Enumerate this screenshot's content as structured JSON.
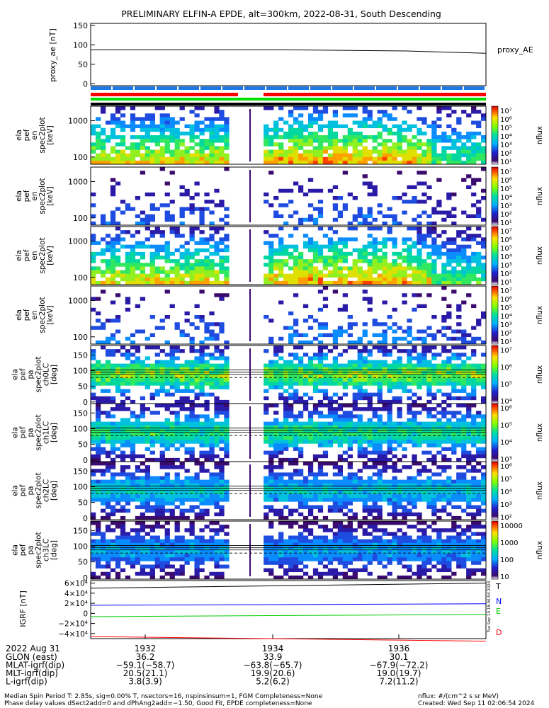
{
  "chart_data": {
    "type": "heatmap",
    "title": "PRELIMINARY ELFIN-A EPDE, alt=300km, 2022-08-31, South Descending",
    "time_axis": {
      "date_label": "2022 Aug 31",
      "ticks": [
        "1932",
        "1934",
        "1936"
      ],
      "rows": [
        {
          "label": "GLON (east)",
          "values": [
            "36.2",
            "33.9",
            "30.1"
          ]
        },
        {
          "label": "MLAT-igrf(dip)",
          "values": [
            "−59.1(−58.7)",
            "−63.8(−65.7)",
            "−67.9(−72.2)"
          ]
        },
        {
          "label": "MLT-igrf(dip)",
          "values": [
            "20.5(21.1)",
            "19.9(20.6)",
            "19.0(19.7)"
          ]
        },
        {
          "label": "L-igrf(dip)",
          "values": [
            "3.8(3.9)",
            "5.2(6.2)",
            "7.2(11.2)"
          ]
        }
      ]
    },
    "proxy_ae": {
      "ylabel": "proxy_ae [nT]",
      "legend": "proxy_AE",
      "yticks": [
        "150",
        "100",
        "50",
        "0"
      ],
      "ylim": [
        -5,
        155
      ],
      "x": [
        0,
        0.5,
        0.8,
        1.0
      ],
      "y": [
        87,
        87,
        84,
        78
      ]
    },
    "energy_panels": [
      {
        "ylabel": [
          "ela",
          "pef",
          "en",
          "spec2plot",
          "[keV]"
        ],
        "yticks": [
          "1000",
          "100"
        ],
        "bar_label": "nflux",
        "bar_ticks": [
          "10⁷",
          "10⁶",
          "10⁵",
          "10⁴",
          "10³",
          "10²",
          "10¹"
        ],
        "intensity": 0.95
      },
      {
        "ylabel": [
          "ela",
          "pef",
          "en",
          "spec2plot",
          "[keV]"
        ],
        "yticks": [
          "1000",
          "100"
        ],
        "bar_label": "nflux",
        "bar_ticks": [
          "10⁷",
          "10⁶",
          "10⁵",
          "10⁴",
          "10³",
          "10²",
          "10¹"
        ],
        "intensity": 0.3
      },
      {
        "ylabel": [
          "ela",
          "pef",
          "en",
          "spec2plot",
          "[keV]"
        ],
        "yticks": [
          "1000",
          "100"
        ],
        "bar_label": "nflux",
        "bar_ticks": [
          "10⁷",
          "10⁶",
          "10⁵",
          "10⁴",
          "10³",
          "10²",
          "10¹"
        ],
        "intensity": 0.95
      },
      {
        "ylabel": [
          "ela",
          "pef",
          "en",
          "spec2plot",
          "[keV]"
        ],
        "yticks": [
          "1000",
          "100"
        ],
        "bar_label": "nflux",
        "bar_ticks": [
          "10⁷",
          "10⁶",
          "10⁵",
          "10⁴",
          "10³",
          "10²",
          "10¹"
        ],
        "intensity": 0.35
      }
    ],
    "pitch_panels": [
      {
        "ylabel": [
          "ela",
          "pef",
          "pa",
          "spec2plot",
          "ch0LC",
          "[deg]"
        ],
        "yticks": [
          "150",
          "100",
          "50",
          "0"
        ],
        "bar_label": "nflux",
        "bar_ticks": [
          "10⁷",
          "10⁶",
          "10⁵",
          "10⁴"
        ],
        "intensity": 0.9
      },
      {
        "ylabel": [
          "ela",
          "pef",
          "pa",
          "spec2plot",
          "ch1LC",
          "[deg]"
        ],
        "yticks": [
          "150",
          "100",
          "50",
          "0"
        ],
        "bar_label": "nflux",
        "bar_ticks": [
          "10⁶",
          "10⁵",
          "10⁴",
          "10³"
        ],
        "intensity": 0.75
      },
      {
        "ylabel": [
          "ela",
          "pef",
          "pa",
          "spec2plot",
          "ch2LC",
          "[deg]"
        ],
        "yticks": [
          "150",
          "100",
          "50",
          "0"
        ],
        "bar_label": "nflux",
        "bar_ticks": [
          "10⁶",
          "10⁵",
          "10⁴",
          "10³",
          "10²"
        ],
        "intensity": 0.6
      },
      {
        "ylabel": [
          "ela",
          "pef",
          "pa",
          "spec2plot",
          "ch3LC",
          "[deg]"
        ],
        "yticks": [
          "150",
          "100",
          "50",
          "0"
        ],
        "bar_label": "nflux",
        "bar_ticks": [
          "10000",
          "1000",
          "100",
          "10"
        ],
        "intensity": 0.5
      }
    ],
    "igrf": {
      "ylabel": "IGRF [nT]",
      "yticks": [
        "6×10⁴",
        "4×10⁴",
        "2×10⁴",
        "0",
        "−2×10⁴",
        "−4×10⁴"
      ],
      "ylim": [
        -50000,
        65000
      ],
      "x": [
        0,
        1
      ],
      "series": [
        {
          "name": "T",
          "color": "#000000",
          "values": [
            50000,
            60000
          ]
        },
        {
          "name": "N",
          "color": "#0000ff",
          "values": [
            16000,
            19000
          ]
        },
        {
          "name": "E",
          "color": "#00cc00",
          "values": [
            -6500,
            -2000
          ]
        },
        {
          "name": "D",
          "color": "#ff0000",
          "values": [
            -46000,
            -55000
          ]
        }
      ]
    },
    "footer": {
      "line1_left": "Median Spin Period T: 2.85s, sig=0.00% T, nsectors=16, nspinsinsum=1, FGM Completeness=None",
      "line2_left": "Phase delay values dSect2add=0 and dPhAng2add=−1.50, Good Fit, EPDE completeness=None",
      "line1_right": "nflux: #/(cm^2 s sr MeV)",
      "line2_right": "Created: Wed Sep 11 02:06:54 2024",
      "side_stamp": "Tue Sep 10 18:06:54 2024"
    },
    "colors": {
      "status_blue": "#1e78e6",
      "status_red": "#ff0000",
      "status_green": "#00dd00"
    }
  }
}
